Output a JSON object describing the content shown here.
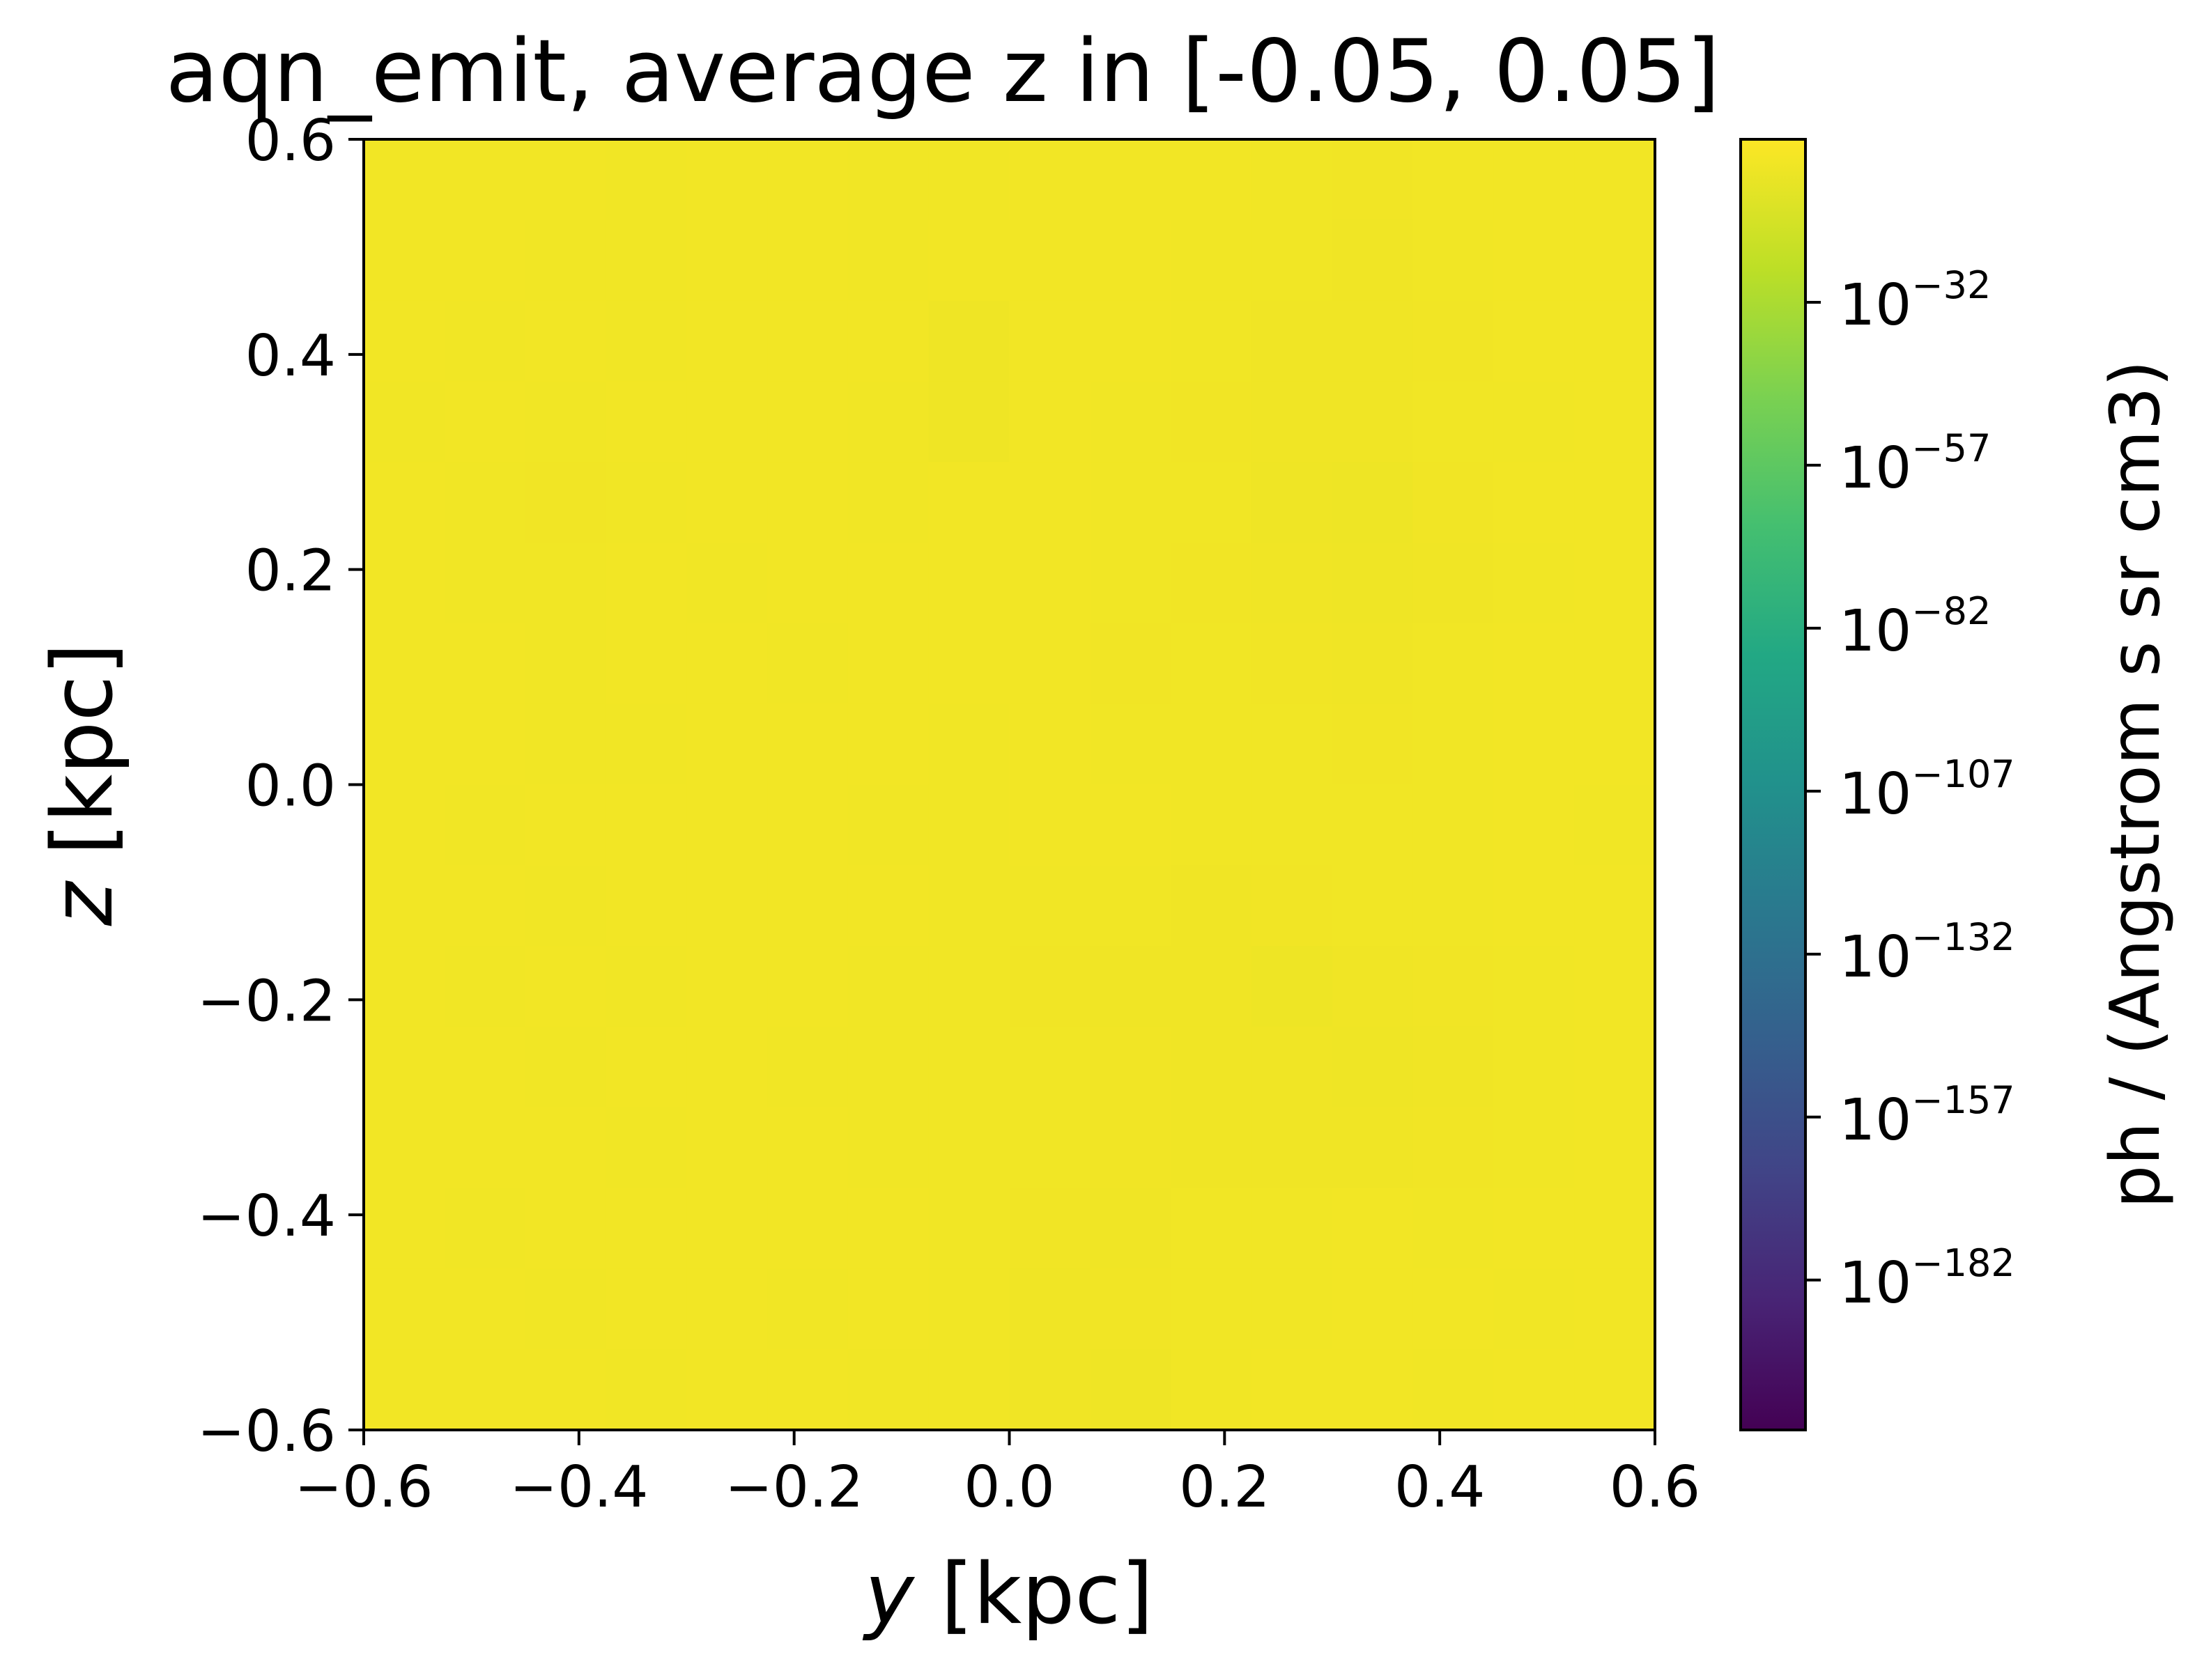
{
  "chart_data": {
    "type": "heatmap",
    "title": "aqn_emit, average z in [-0.05, 0.05]",
    "xlabel": "y [kpc]",
    "ylabel": "z [kpc]",
    "xlabel_var": "y",
    "xlabel_unit": " [kpc]",
    "ylabel_var": "z",
    "ylabel_unit": " [kpc]",
    "xlim": [
      -0.6,
      0.6
    ],
    "ylim": [
      -0.6,
      0.6
    ],
    "xticks": [
      -0.6,
      -0.4,
      -0.2,
      0.0,
      0.2,
      0.4,
      0.6
    ],
    "yticks": [
      -0.6,
      -0.4,
      -0.2,
      0.0,
      0.2,
      0.4,
      0.6
    ],
    "xtick_labels": [
      "−0.6",
      "−0.4",
      "−0.2",
      "0.0",
      "0.2",
      "0.4",
      "0.6"
    ],
    "ytick_labels": [
      "−0.6",
      "−0.4",
      "−0.2",
      "0.0",
      "0.2",
      "0.4",
      "0.6"
    ],
    "colormap": "viridis",
    "colorbar": {
      "label": "ph / (Angstrom s sr cm3)",
      "scale": "log",
      "range_log10": [
        -205,
        -7
      ],
      "ticks_log10": [
        -32,
        -57,
        -82,
        -107,
        -132,
        -157,
        -182
      ],
      "tick_base": "10",
      "tick_exponents": [
        "−32",
        "−57",
        "−82",
        "−107",
        "−132",
        "−157",
        "−182"
      ]
    },
    "grid": false,
    "note_values": "All cells near the top of the color scale (about 10^-10 to 10^-14)",
    "grid_shape": [
      16,
      16
    ],
    "values_log10": [
      [
        -10.5,
        -10.4,
        -10.5,
        -10.6,
        -10.4,
        -10.5,
        -10.7,
        -10.6,
        -10.4,
        -10.3,
        -10.5,
        -10.6,
        -10.8,
        -10.5,
        -10.4,
        -10.5
      ],
      [
        -10.4,
        -10.5,
        -10.6,
        -10.7,
        -10.5,
        -10.4,
        -10.6,
        -10.5,
        -10.3,
        -10.4,
        -10.6,
        -10.7,
        -11.0,
        -10.6,
        -10.5,
        -10.4
      ],
      [
        -10.5,
        -10.6,
        -10.5,
        -10.6,
        -10.4,
        -10.5,
        -10.5,
        -11.2,
        -10.4,
        -10.5,
        -10.7,
        -10.9,
        -11.1,
        -10.8,
        -10.5,
        -10.5
      ],
      [
        -10.6,
        -10.5,
        -10.6,
        -10.5,
        -10.5,
        -10.4,
        -10.6,
        -11.3,
        -10.5,
        -10.6,
        -10.8,
        -10.9,
        -11.0,
        -10.7,
        -10.6,
        -10.5
      ],
      [
        -10.5,
        -10.7,
        -10.8,
        -10.6,
        -10.5,
        -10.5,
        -10.6,
        -10.5,
        -10.4,
        -10.6,
        -10.7,
        -11.2,
        -11.5,
        -10.8,
        -10.5,
        -10.4
      ],
      [
        -10.5,
        -10.6,
        -10.6,
        -10.5,
        -10.6,
        -10.5,
        -10.5,
        -10.4,
        -10.5,
        -10.6,
        -10.8,
        -10.9,
        -11.3,
        -10.9,
        -10.6,
        -10.5
      ],
      [
        -10.4,
        -10.5,
        -10.6,
        -10.5,
        -10.5,
        -10.6,
        -10.5,
        -10.4,
        -10.3,
        -10.8,
        -10.7,
        -10.8,
        -10.9,
        -10.7,
        -10.5,
        -10.4
      ],
      [
        -10.5,
        -10.5,
        -10.6,
        -10.6,
        -10.5,
        -10.5,
        -10.4,
        -10.6,
        -10.5,
        -10.6,
        -10.6,
        -10.7,
        -10.8,
        -10.6,
        -10.5,
        -10.5
      ],
      [
        -10.5,
        -10.6,
        -10.5,
        -10.5,
        -10.4,
        -10.5,
        -10.7,
        -10.6,
        -10.5,
        -10.5,
        -10.6,
        -10.7,
        -10.6,
        -10.6,
        -10.5,
        -10.6
      ],
      [
        -10.4,
        -10.5,
        -10.6,
        -10.5,
        -10.5,
        -10.4,
        -10.5,
        -10.6,
        -10.6,
        -10.7,
        -10.9,
        -10.8,
        -10.7,
        -10.6,
        -10.5,
        -10.4
      ],
      [
        -10.5,
        -10.6,
        -10.5,
        -10.6,
        -10.5,
        -10.5,
        -10.6,
        -10.7,
        -10.8,
        -10.9,
        -11.0,
        -11.6,
        -11.1,
        -10.8,
        -10.6,
        -10.5
      ],
      [
        -10.5,
        -10.5,
        -10.6,
        -10.5,
        -10.5,
        -10.6,
        -10.6,
        -10.6,
        -10.7,
        -10.8,
        -10.9,
        -11.0,
        -11.4,
        -10.9,
        -10.6,
        -10.5
      ],
      [
        -10.4,
        -10.5,
        -10.5,
        -10.6,
        -10.5,
        -10.5,
        -10.6,
        -10.6,
        -10.7,
        -10.8,
        -11.0,
        -11.1,
        -10.9,
        -10.8,
        -10.6,
        -10.5
      ],
      [
        -10.5,
        -10.6,
        -10.5,
        -10.5,
        -10.4,
        -10.5,
        -10.5,
        -10.7,
        -10.8,
        -10.9,
        -10.7,
        -10.6,
        -10.5,
        -10.6,
        -10.5,
        -10.4
      ],
      [
        -10.5,
        -10.5,
        -10.6,
        -10.5,
        -10.5,
        -10.6,
        -10.5,
        -10.6,
        -10.9,
        -10.8,
        -10.7,
        -10.6,
        -10.5,
        -10.5,
        -10.6,
        -10.5
      ],
      [
        -10.4,
        -10.5,
        -10.5,
        -10.6,
        -10.5,
        -10.5,
        -10.6,
        -10.6,
        -11.0,
        -11.2,
        -10.6,
        -10.5,
        -10.5,
        -10.6,
        -10.5,
        -10.5
      ]
    ]
  }
}
